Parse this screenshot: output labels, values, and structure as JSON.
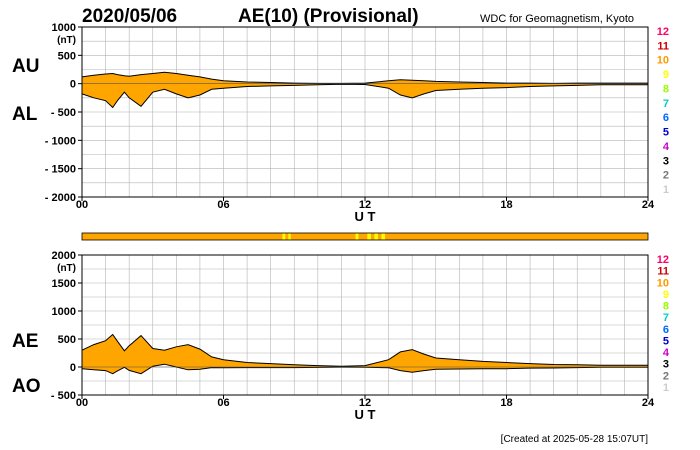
{
  "header": {
    "date": "2020/05/06",
    "title": "AE(10) (Provisional)",
    "source": "WDC for Geomagnetism, Kyoto"
  },
  "footer": {
    "created": "[Created at 2025-05-28 15:07UT]"
  },
  "colors": {
    "fill": "#ffa500",
    "line": "#000000",
    "grid": "#b4b4b4",
    "bar_yellow": "#ffff00"
  },
  "station_scale": {
    "labels": [
      "12",
      "11",
      "10",
      "9",
      "8",
      "7",
      "6",
      "5",
      "4",
      "3",
      "2",
      "1"
    ],
    "colors": [
      "#ff0066",
      "#cc0000",
      "#ff9900",
      "#ffff00",
      "#99ff00",
      "#00cccc",
      "#0066ff",
      "#0000cc",
      "#cc00cc",
      "#000000",
      "#777777",
      "#cccccc"
    ]
  },
  "chart_data": [
    {
      "type": "area",
      "panel": "top",
      "unit_label": "(nT)",
      "xlabel": "U T",
      "upper_label": "AU",
      "lower_label": "AL",
      "x_ticks": [
        "00",
        "06",
        "12",
        "18",
        "24"
      ],
      "xlim": [
        0,
        24
      ],
      "ylim": [
        -2000,
        1000
      ],
      "y_ticks": [
        1000,
        500,
        0,
        -500,
        -1000,
        -1500,
        -2000
      ],
      "y_tick_labels": [
        "1000",
        "500",
        "0",
        "- 500",
        "- 1000",
        "- 1500",
        "- 2000"
      ],
      "grid": true,
      "x_hours": [
        0,
        0.5,
        1,
        1.3,
        1.5,
        1.8,
        2,
        2.5,
        3,
        3.5,
        4,
        4.5,
        5,
        5.5,
        6,
        7,
        8,
        9,
        10,
        11,
        12,
        13,
        13.5,
        14,
        14.5,
        15,
        16,
        17,
        18,
        19,
        20,
        21,
        22,
        23,
        24
      ],
      "series": [
        {
          "values": [
            120,
            150,
            170,
            180,
            160,
            140,
            130,
            160,
            180,
            200,
            180,
            150,
            120,
            80,
            50,
            30,
            20,
            10,
            5,
            5,
            10,
            50,
            70,
            60,
            50,
            40,
            30,
            20,
            10,
            10,
            5,
            10,
            10,
            10,
            10
          ]
        },
        {
          "values": [
            -180,
            -250,
            -300,
            -420,
            -300,
            -150,
            -250,
            -400,
            -150,
            -100,
            -180,
            -250,
            -200,
            -100,
            -80,
            -50,
            -40,
            -30,
            -20,
            -10,
            -15,
            -80,
            -200,
            -250,
            -180,
            -120,
            -100,
            -80,
            -70,
            -50,
            -40,
            -30,
            -20,
            -20,
            -20
          ]
        }
      ]
    },
    {
      "type": "area",
      "panel": "bottom",
      "unit_label": "(nT)",
      "xlabel": "U T",
      "upper_label": "AE",
      "lower_label": "AO",
      "x_ticks": [
        "00",
        "06",
        "12",
        "18",
        "24"
      ],
      "xlim": [
        0,
        24
      ],
      "ylim": [
        -500,
        2000
      ],
      "y_ticks": [
        2000,
        1500,
        1000,
        500,
        0,
        -500
      ],
      "y_tick_labels": [
        "2000",
        "1500",
        "1000",
        "500",
        "0",
        "- 500"
      ],
      "grid": true,
      "x_hours": [
        0,
        0.5,
        1,
        1.3,
        1.5,
        1.8,
        2,
        2.5,
        3,
        3.5,
        4,
        4.5,
        5,
        5.5,
        6,
        7,
        8,
        9,
        10,
        11,
        12,
        13,
        13.5,
        14,
        14.5,
        15,
        16,
        17,
        18,
        19,
        20,
        21,
        22,
        23,
        24
      ],
      "series": [
        {
          "values": [
            300,
            400,
            470,
            580,
            460,
            290,
            380,
            560,
            330,
            300,
            360,
            400,
            320,
            180,
            130,
            80,
            60,
            40,
            25,
            15,
            25,
            130,
            270,
            310,
            230,
            160,
            130,
            100,
            80,
            60,
            45,
            40,
            30,
            30,
            30
          ]
        },
        {
          "values": [
            -30,
            -50,
            -65,
            -120,
            -70,
            -5,
            -60,
            -120,
            15,
            50,
            0,
            -50,
            -40,
            -10,
            -15,
            -10,
            -10,
            -10,
            -7,
            -2,
            -3,
            -15,
            -65,
            -95,
            -65,
            -40,
            -35,
            -30,
            -30,
            -20,
            -18,
            -10,
            -5,
            -5,
            -5
          ]
        }
      ]
    }
  ],
  "status_bar": {
    "range_hours": [
      0,
      24
    ],
    "segments_hours": [
      [
        8.5,
        8.62
      ],
      [
        8.75,
        8.85
      ],
      [
        11.6,
        11.72
      ],
      [
        12.1,
        12.25
      ],
      [
        12.4,
        12.55
      ],
      [
        12.7,
        12.85
      ]
    ]
  }
}
